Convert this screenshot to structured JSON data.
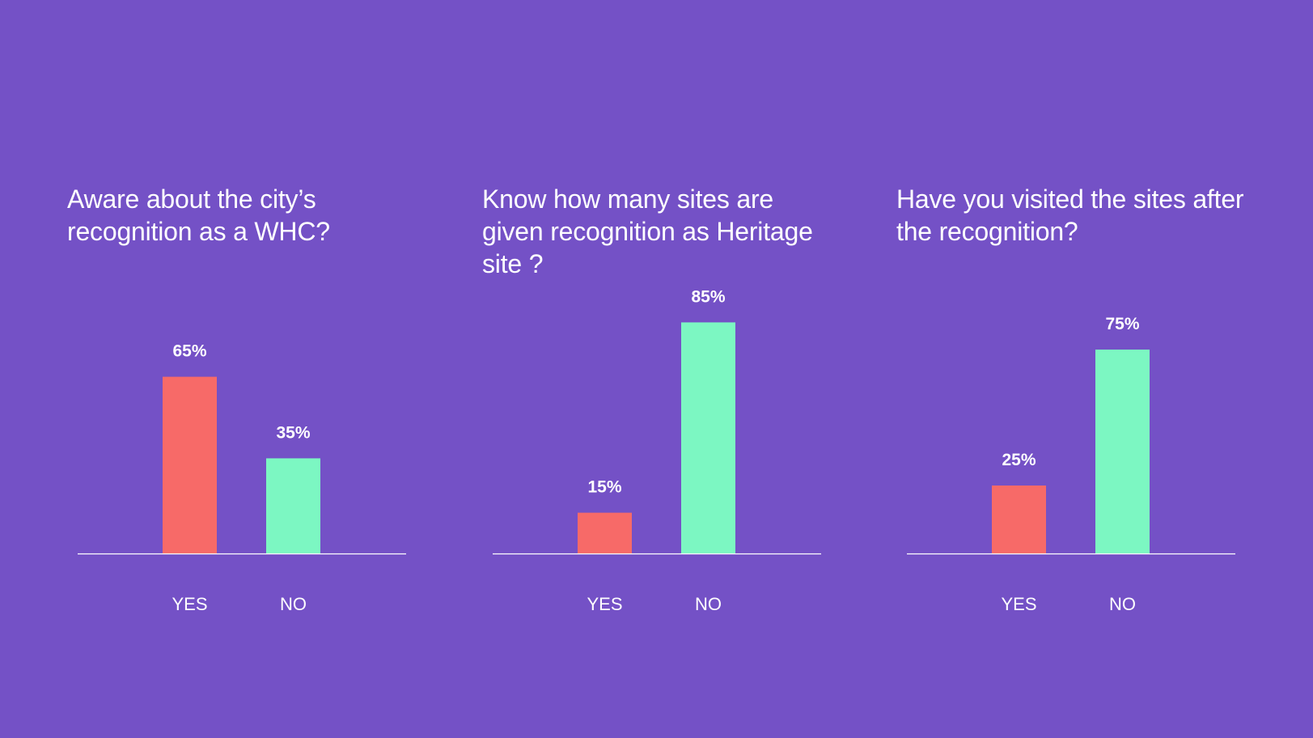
{
  "colors": {
    "background": "#7451c6",
    "yes": "#f76a68",
    "no": "#7cf7c2",
    "text": "#ffffff"
  },
  "chart_data": [
    {
      "type": "bar",
      "title": "Aware about the city’s recognition as a WHC?",
      "categories": [
        "YES",
        "NO"
      ],
      "values": [
        65,
        35
      ],
      "value_labels": [
        "65%",
        "35%"
      ],
      "ylim": [
        0,
        100
      ]
    },
    {
      "type": "bar",
      "title": "Know how many sites are given recognition as Heritage site ?",
      "categories": [
        "YES",
        "NO"
      ],
      "values": [
        15,
        85
      ],
      "value_labels": [
        "15%",
        "85%"
      ],
      "ylim": [
        0,
        100
      ]
    },
    {
      "type": "bar",
      "title": "Have you visited the sites after the recognition?",
      "categories": [
        "YES",
        "NO"
      ],
      "values": [
        25,
        75
      ],
      "value_labels": [
        "25%",
        "75%"
      ],
      "ylim": [
        0,
        100
      ]
    }
  ]
}
